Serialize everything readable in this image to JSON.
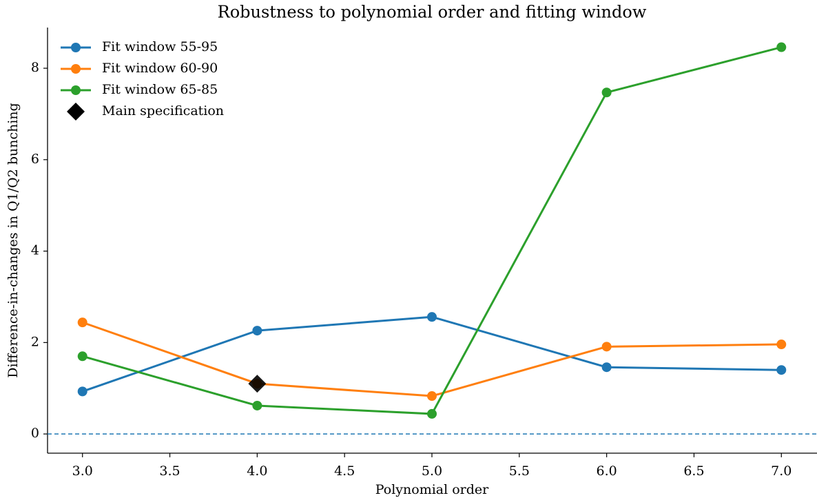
{
  "chart_data": {
    "type": "line",
    "title": "Robustness to polynomial order and fitting window",
    "xlabel": "Polynomial order",
    "ylabel": "Difference-in-changes in Q1/Q2 bunching",
    "x": [
      3,
      4,
      5,
      6,
      7
    ],
    "series": [
      {
        "name": "Fit window 55-95",
        "color": "#1f77b4",
        "values": [
          0.93,
          2.26,
          2.56,
          1.46,
          1.4
        ]
      },
      {
        "name": "Fit window 60-90",
        "color": "#ff7f0e",
        "values": [
          2.44,
          1.1,
          0.83,
          1.91,
          1.96
        ]
      },
      {
        "name": "Fit window 65-85",
        "color": "#2ca02c",
        "values": [
          1.7,
          0.62,
          0.44,
          7.47,
          8.46
        ]
      }
    ],
    "main_spec": {
      "name": "Main specification",
      "x": 4,
      "y": 1.1,
      "color": "#000000"
    },
    "hline": {
      "value": 0,
      "color": "#1f77b4"
    },
    "xlim": [
      2.8,
      7.2
    ],
    "xticks": [
      {
        "value": 3,
        "label": "3.0"
      },
      {
        "value": 3.5,
        "label": "3.5"
      },
      {
        "value": 4,
        "label": "4.0"
      },
      {
        "value": 4.5,
        "label": "4.5"
      },
      {
        "value": 5,
        "label": "5.0"
      },
      {
        "value": 5.5,
        "label": "5.5"
      },
      {
        "value": 6,
        "label": "6.0"
      },
      {
        "value": 6.5,
        "label": "6.5"
      },
      {
        "value": 7,
        "label": "7.0"
      }
    ],
    "ylim": [
      -0.42,
      8.89
    ],
    "yticks": [
      0,
      2,
      4,
      6,
      8
    ],
    "legend": "upper left",
    "grid": false
  }
}
